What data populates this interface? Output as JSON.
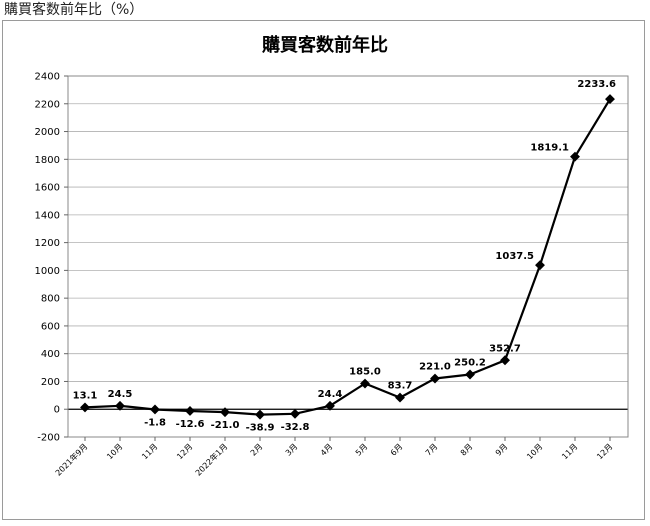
{
  "caption": "購買客数前年比（%）",
  "chart_data": {
    "type": "line",
    "title": "購買客数前年比",
    "xlabel": "",
    "ylabel": "",
    "categories": [
      "2021年9月",
      "10月",
      "11月",
      "12月",
      "2022年1月",
      "2月",
      "3月",
      "4月",
      "5月",
      "6月",
      "7月",
      "8月",
      "9月",
      "10月",
      "11月",
      "12月"
    ],
    "series": [
      {
        "values": [
          13.1,
          24.5,
          -1.8,
          -12.6,
          -21.0,
          -38.9,
          -32.8,
          24.4,
          185.0,
          83.7,
          221.0,
          250.2,
          352.7,
          1037.5,
          1819.1,
          2233.6
        ],
        "labels": [
          "13.1",
          "24.5",
          "-1.8",
          "-12.6",
          "-21.0",
          "-38.9",
          "-32.8",
          "24.4",
          "185.0",
          "83.7",
          "221.0",
          "250.2",
          "352.7",
          "1037.5",
          "1819.1",
          "2233.6"
        ]
      }
    ],
    "ylim": [
      -200,
      2400
    ],
    "yticks": [
      "-200",
      "0",
      "200",
      "400",
      "600",
      "800",
      "1000",
      "1200",
      "1400",
      "1600",
      "1800",
      "2000",
      "2200",
      "2400"
    ],
    "grid": true,
    "legend": "none",
    "colors": {
      "line": "#000000",
      "grid": "#b0b0b0",
      "zero_line": "#000000"
    }
  }
}
